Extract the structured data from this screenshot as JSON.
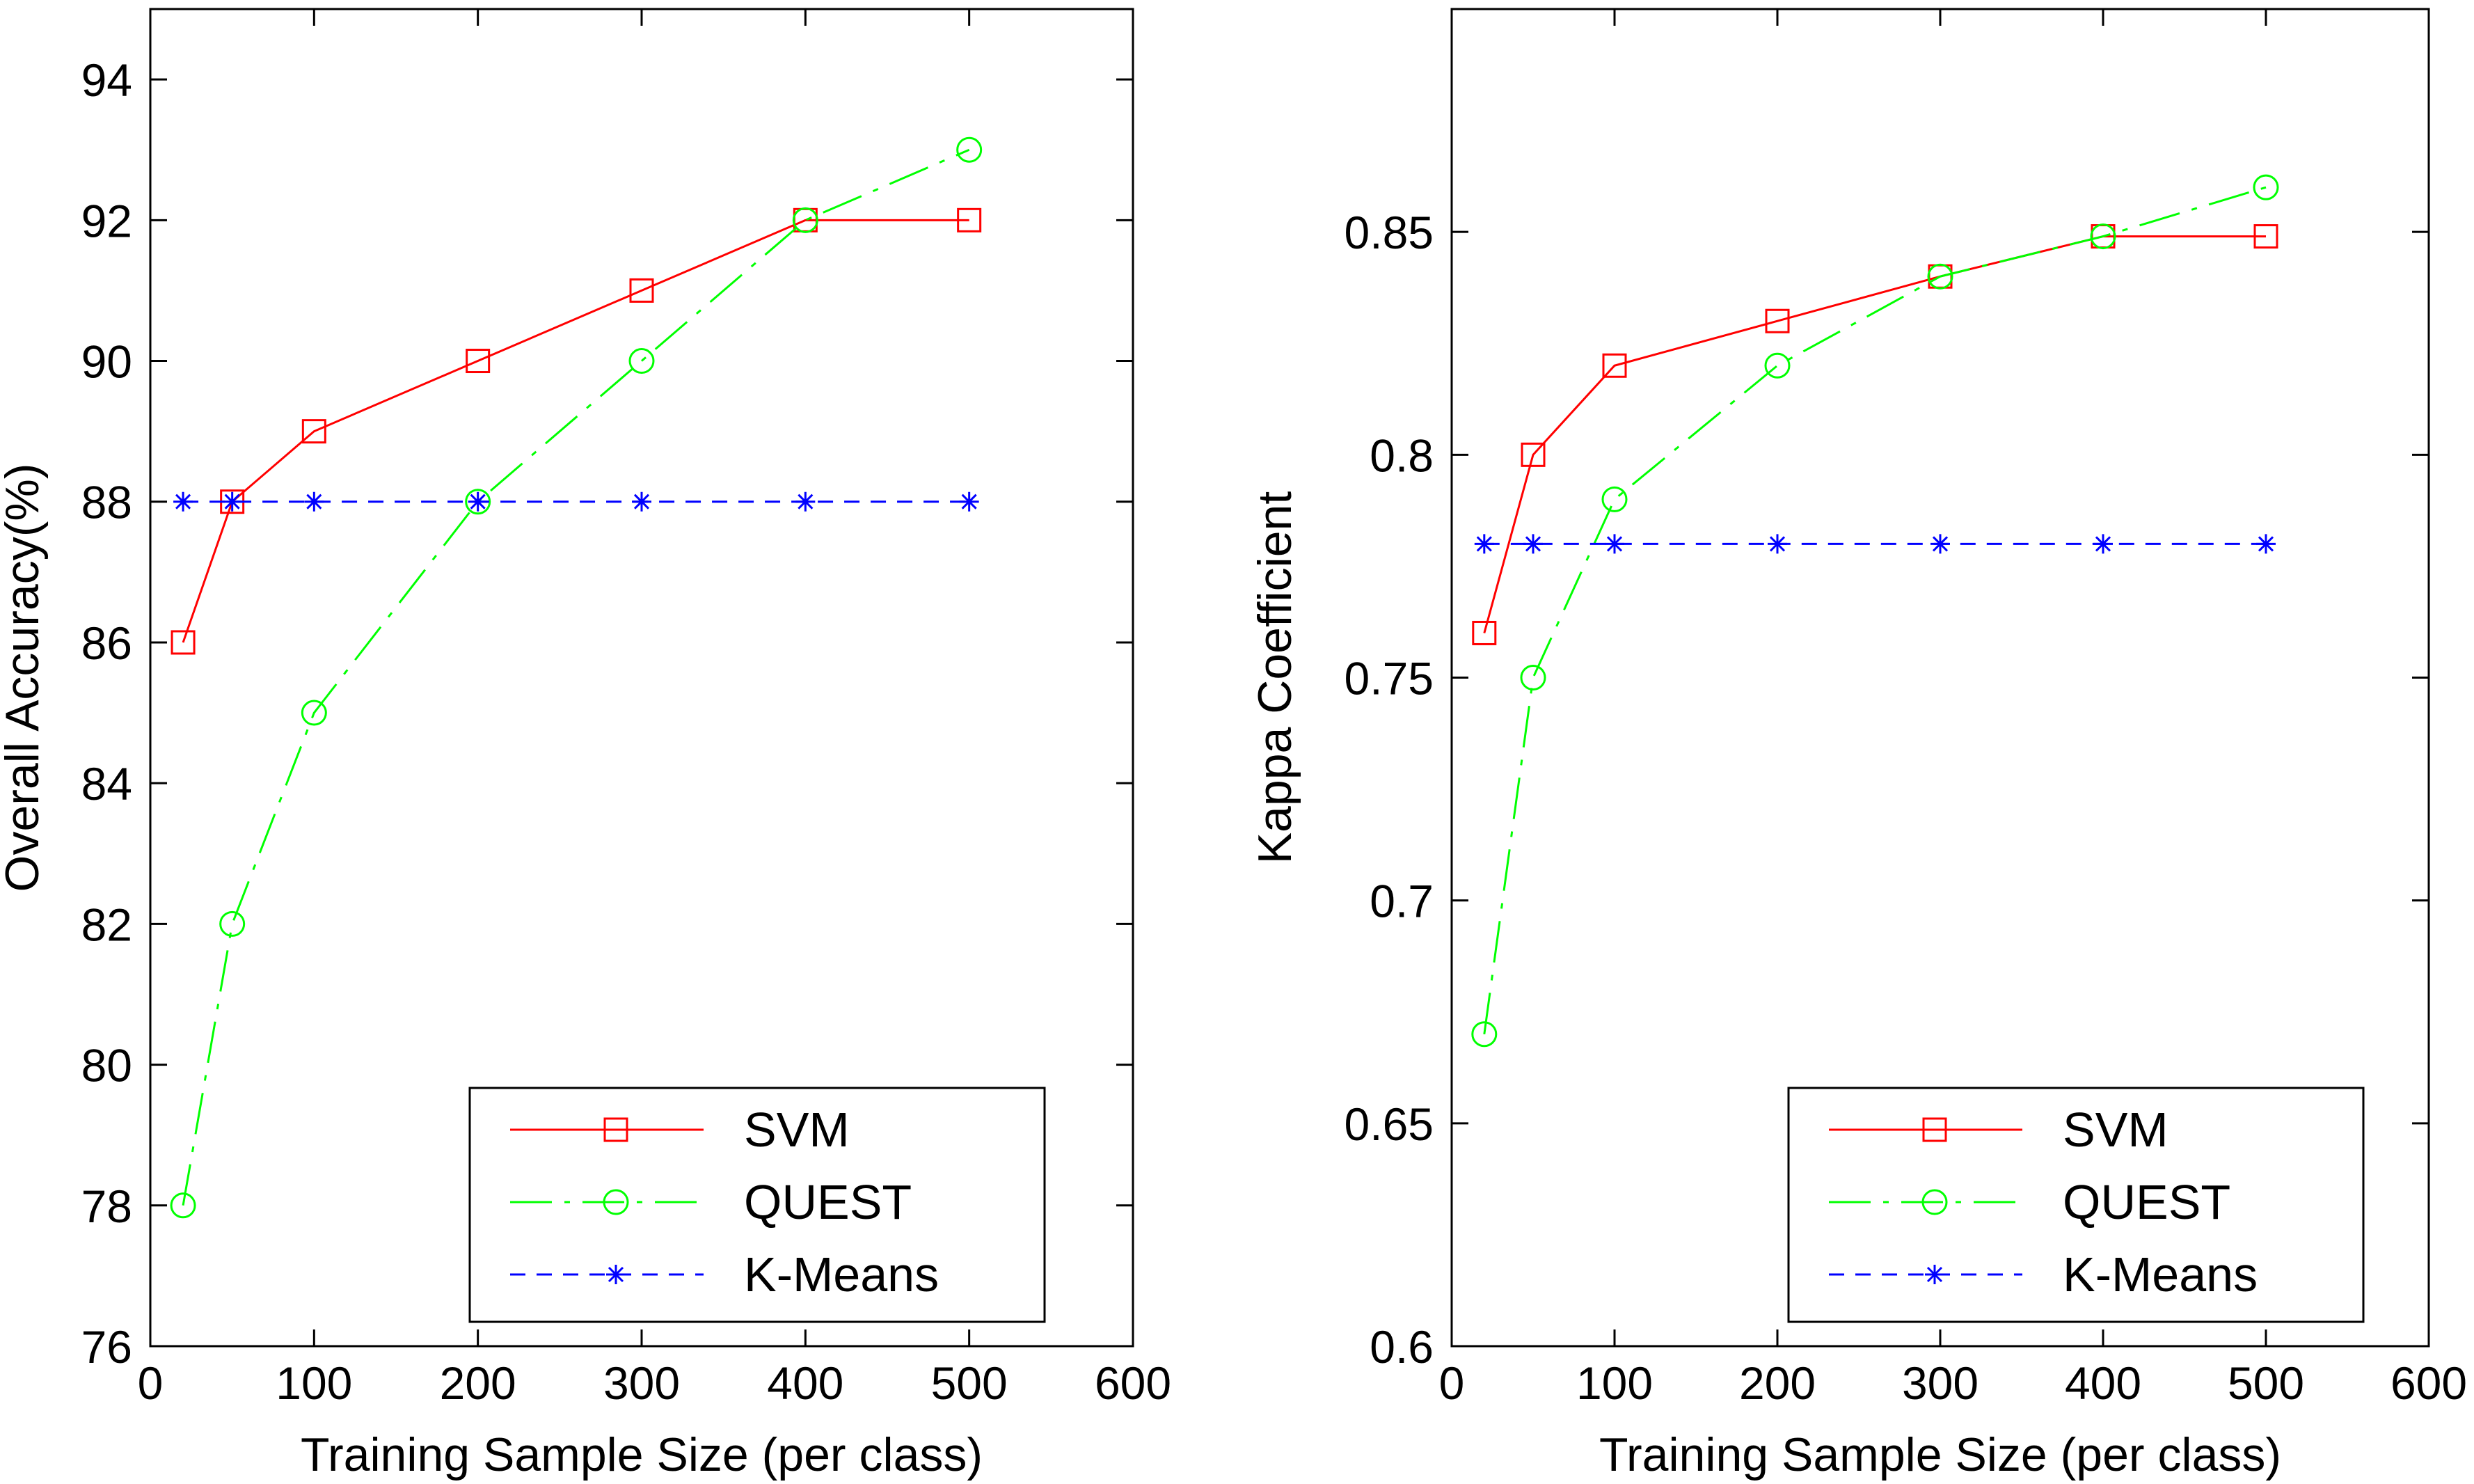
{
  "chart_data": [
    {
      "type": "line",
      "title": "",
      "xlabel": "Training Sample Size (per class)",
      "ylabel": "Overall Accuracy(%)",
      "xlim": [
        0,
        600
      ],
      "ylim": [
        76,
        95
      ],
      "xticks": [
        0,
        100,
        200,
        300,
        400,
        500,
        600
      ],
      "yticks": [
        76,
        78,
        80,
        82,
        84,
        86,
        88,
        90,
        92,
        94
      ],
      "x": [
        20,
        50,
        100,
        200,
        300,
        400,
        500
      ],
      "series": [
        {
          "name": "SVM",
          "values": [
            86,
            88,
            89,
            90,
            91,
            92,
            92
          ],
          "color": "#ff0000",
          "marker": "square",
          "line": "solid"
        },
        {
          "name": "QUEST",
          "values": [
            78,
            82,
            85,
            88,
            90,
            92,
            93
          ],
          "color": "#00ff00",
          "marker": "circle",
          "line": "dashdot"
        },
        {
          "name": "K-Means",
          "values": [
            88,
            88,
            88,
            88,
            88,
            88,
            88
          ],
          "color": "#0000ff",
          "marker": "star",
          "line": "dashed"
        }
      ],
      "legend": "bottom-right"
    },
    {
      "type": "line",
      "title": "",
      "xlabel": "Training Sample Size (per class)",
      "ylabel": "Kappa Coefficient",
      "xlim": [
        0,
        600
      ],
      "ylim": [
        0.6,
        0.9
      ],
      "xticks": [
        0,
        100,
        200,
        300,
        400,
        500,
        600
      ],
      "yticks": [
        0.6,
        0.65,
        0.7,
        0.75,
        0.8,
        0.85
      ],
      "ytick_labels": [
        "0.6",
        "0.65",
        "0.7",
        "0.75",
        "0.8",
        "0.85"
      ],
      "x": [
        20,
        50,
        100,
        200,
        300,
        400,
        500
      ],
      "series": [
        {
          "name": "SVM",
          "values": [
            0.76,
            0.8,
            0.82,
            0.83,
            0.84,
            0.849,
            0.849
          ],
          "color": "#ff0000",
          "marker": "square",
          "line": "solid"
        },
        {
          "name": "QUEST",
          "values": [
            0.67,
            0.75,
            0.79,
            0.82,
            0.84,
            0.849,
            0.86
          ],
          "color": "#00ff00",
          "marker": "circle",
          "line": "dashdot"
        },
        {
          "name": "K-Means",
          "values": [
            0.78,
            0.78,
            0.78,
            0.78,
            0.78,
            0.78,
            0.78
          ],
          "color": "#0000ff",
          "marker": "star",
          "line": "dashed"
        }
      ],
      "legend": "bottom-right"
    }
  ]
}
